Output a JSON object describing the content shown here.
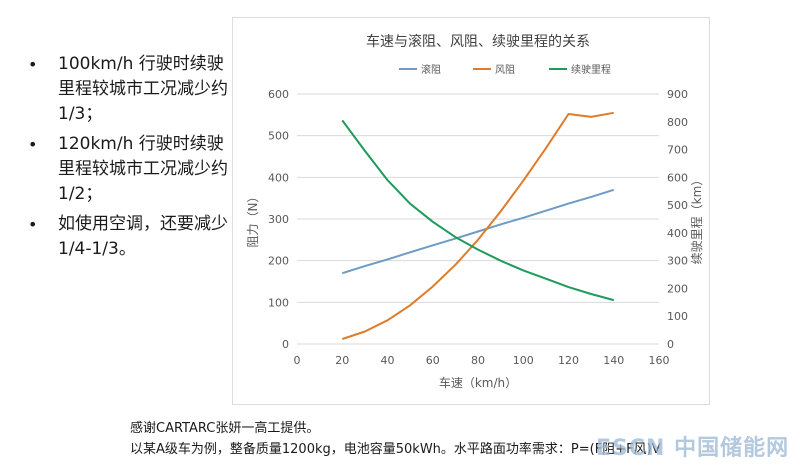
{
  "bullets": [
    "100km/h 行驶时续驶里程较城市工况减少约1/3；",
    "120km/h 行驶时续驶里程较城市工况减少约1/2；",
    "如使用空调，还要减少1/4-1/3。"
  ],
  "credit": {
    "line1": "感谢CARTARC张妍一高工提供。",
    "line2": "以某A级车为例，整备质量1200kg，电池容量50kWh。水平路面功率需求：P=(F阻+F风)V"
  },
  "watermark": "ESCN 中国储能网",
  "colors": {
    "rolling": "#6e9bc5",
    "wind": "#e07b2a",
    "range": "#1e9a5a",
    "grid": "#d9d9d9",
    "axis_text": "#595959",
    "title": "#404040"
  },
  "chart_data": {
    "type": "line",
    "title": "车速与滚阻、风阻、续驶里程的关系",
    "xlabel": "车速（km/h）",
    "ylabel_left": "阻力（N）",
    "ylabel_right": "续驶里程（km）",
    "xlim": [
      0,
      160
    ],
    "ylim_left": [
      0,
      600
    ],
    "ylim_right": [
      0,
      900
    ],
    "x_ticks": [
      0,
      20,
      40,
      60,
      80,
      100,
      120,
      140,
      160
    ],
    "y_ticks_left": [
      0,
      100,
      200,
      300,
      400,
      500,
      600
    ],
    "y_ticks_right": [
      0,
      100,
      200,
      300,
      400,
      500,
      600,
      700,
      800,
      900
    ],
    "grid": true,
    "legend_position": "top",
    "x": [
      20,
      30,
      40,
      50,
      60,
      70,
      80,
      90,
      100,
      110,
      120,
      130,
      140
    ],
    "series": [
      {
        "name": "滚阻",
        "axis": "left",
        "color_key": "rolling",
        "values": [
          170,
          187,
          203,
          220,
          237,
          253,
          270,
          287,
          303,
          320,
          337,
          353,
          370
        ]
      },
      {
        "name": "风阻",
        "axis": "left",
        "color_key": "wind",
        "values": [
          12,
          30,
          57,
          93,
          138,
          190,
          250,
          318,
          392,
          470,
          552,
          545,
          555
        ]
      },
      {
        "name": "续驶里程",
        "axis": "right",
        "color_key": "range",
        "values": [
          805,
          695,
          590,
          505,
          440,
          385,
          340,
          300,
          265,
          235,
          205,
          180,
          158
        ]
      }
    ]
  }
}
